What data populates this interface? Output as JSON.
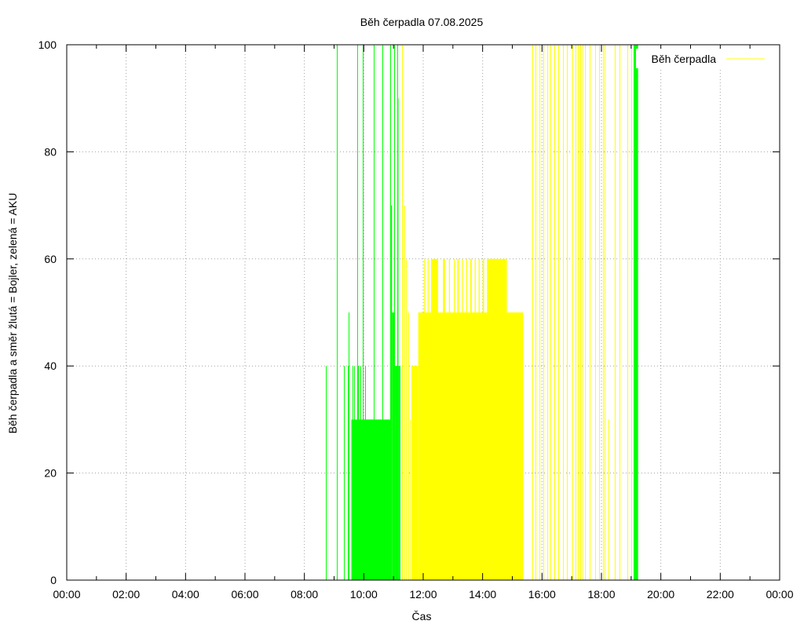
{
  "chart_data": {
    "type": "bar",
    "title": "Běh čerpadla 07.08.2025",
    "xlabel": "Čas",
    "ylabel": "Běh čerpadla a směr žlutá = Bojler, zelená = AKU",
    "xlim": [
      "00:00",
      "24:00"
    ],
    "ylim": [
      0,
      100
    ],
    "x_ticks": [
      "00:00",
      "02:00",
      "04:00",
      "06:00",
      "08:00",
      "10:00",
      "12:00",
      "14:00",
      "16:00",
      "18:00",
      "20:00",
      "22:00",
      "00:00"
    ],
    "y_ticks": [
      "0",
      "20",
      "40",
      "60",
      "80",
      "100"
    ],
    "grid": true,
    "legend": {
      "position": "top-right",
      "label": "Běh čerpadla"
    },
    "colors": {
      "green": "#00ff00",
      "yellow": "#ffff00",
      "grid": "#a0a0a0",
      "frame": "#000000"
    },
    "series": [
      {
        "name": "AKU (green)",
        "color": "#00ff00",
        "spikes": [
          {
            "time": "08:43",
            "value": 40
          },
          {
            "time": "09:05",
            "value": 100
          },
          {
            "time": "09:06",
            "value": 40
          },
          {
            "time": "09:20",
            "value": 40
          },
          {
            "time": "09:27",
            "value": 40
          },
          {
            "time": "09:30",
            "value": 50
          },
          {
            "time": "09:37",
            "value": 40
          },
          {
            "time": "09:40",
            "value": 40
          },
          {
            "time": "09:47",
            "value": 100
          },
          {
            "time": "09:49",
            "value": 40
          },
          {
            "time": "09:53",
            "value": 40
          },
          {
            "time": "09:58",
            "value": 100
          },
          {
            "time": "10:03",
            "value": 40
          },
          {
            "time": "10:20",
            "value": 100
          },
          {
            "time": "10:38",
            "value": 100
          },
          {
            "time": "10:53",
            "value": 100
          },
          {
            "time": "11:02",
            "value": 100
          },
          {
            "time": "11:08",
            "value": 100
          },
          {
            "time": "19:08",
            "value": 100
          },
          {
            "time": "19:10",
            "value": 100
          }
        ],
        "segments": [
          {
            "start": "09:35",
            "end": "10:55",
            "value": 30
          },
          {
            "start": "10:55",
            "end": "10:57",
            "value": 70
          },
          {
            "start": "10:57",
            "end": "11:03",
            "value": 50
          },
          {
            "start": "11:03",
            "end": "11:08",
            "value": 40
          },
          {
            "start": "11:08",
            "end": "11:10",
            "value": 90
          },
          {
            "start": "11:10",
            "end": "11:14",
            "value": 40
          },
          {
            "start": "19:05",
            "end": "19:14",
            "value": 100
          }
        ]
      },
      {
        "name": "Bojler (yellow)",
        "color": "#ffff00",
        "spikes": [
          {
            "time": "11:17",
            "value": 100
          },
          {
            "time": "11:22",
            "value": 70
          },
          {
            "time": "11:25",
            "value": 60
          },
          {
            "time": "11:30",
            "value": 50
          },
          {
            "time": "11:33",
            "value": 30
          },
          {
            "time": "11:36",
            "value": 40
          },
          {
            "time": "11:40",
            "value": 40
          },
          {
            "time": "15:40",
            "value": 100
          },
          {
            "time": "15:47",
            "value": 100
          },
          {
            "time": "15:55",
            "value": 100
          },
          {
            "time": "16:02",
            "value": 100
          },
          {
            "time": "16:10",
            "value": 100
          },
          {
            "time": "16:17",
            "value": 100
          },
          {
            "time": "16:25",
            "value": 100
          },
          {
            "time": "16:33",
            "value": 100
          },
          {
            "time": "16:42",
            "value": 100
          },
          {
            "time": "16:50",
            "value": 100
          },
          {
            "time": "17:02",
            "value": 100
          },
          {
            "time": "17:07",
            "value": 100
          },
          {
            "time": "17:12",
            "value": 100
          },
          {
            "time": "17:17",
            "value": 100
          },
          {
            "time": "17:22",
            "value": 100
          },
          {
            "time": "17:27",
            "value": 100
          },
          {
            "time": "17:37",
            "value": 100
          },
          {
            "time": "17:47",
            "value": 100
          },
          {
            "time": "17:55",
            "value": 100
          },
          {
            "time": "18:03",
            "value": 100
          },
          {
            "time": "18:07",
            "value": 100
          },
          {
            "time": "18:15",
            "value": 30
          },
          {
            "time": "18:27",
            "value": 100
          },
          {
            "time": "18:37",
            "value": 100
          },
          {
            "time": "18:52",
            "value": 100
          },
          {
            "time": "19:00",
            "value": 100
          }
        ],
        "segments": [
          {
            "start": "11:37",
            "end": "11:50",
            "value": 40
          },
          {
            "start": "11:50",
            "end": "15:22",
            "value": 50
          },
          {
            "start": "12:02",
            "end": "12:04",
            "value": 60
          },
          {
            "start": "12:09",
            "end": "12:11",
            "value": 60
          },
          {
            "start": "12:16",
            "end": "12:30",
            "value": 60
          },
          {
            "start": "12:40",
            "end": "12:44",
            "value": 60
          },
          {
            "start": "12:52",
            "end": "12:54",
            "value": 60
          },
          {
            "start": "13:02",
            "end": "13:04",
            "value": 60
          },
          {
            "start": "13:09",
            "end": "13:12",
            "value": 60
          },
          {
            "start": "13:18",
            "end": "13:20",
            "value": 60
          },
          {
            "start": "13:27",
            "end": "13:29",
            "value": 60
          },
          {
            "start": "13:35",
            "end": "13:38",
            "value": 60
          },
          {
            "start": "13:44",
            "end": "13:46",
            "value": 60
          },
          {
            "start": "13:52",
            "end": "13:54",
            "value": 60
          },
          {
            "start": "14:00",
            "end": "14:03",
            "value": 60
          },
          {
            "start": "14:09",
            "end": "14:49",
            "value": 60
          }
        ]
      }
    ]
  }
}
